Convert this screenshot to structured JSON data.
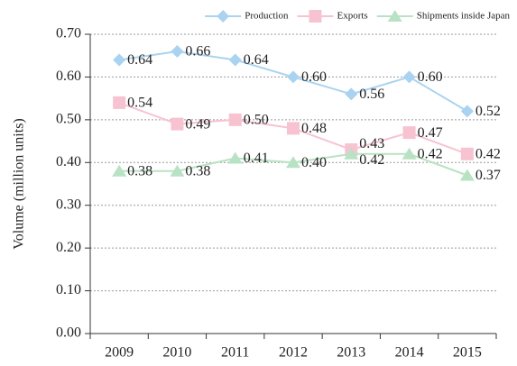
{
  "chart_data": {
    "type": "line",
    "y_label": "Volume (million units)",
    "categories": [
      "2009",
      "2010",
      "2011",
      "2012",
      "2013",
      "2014",
      "2015"
    ],
    "series": [
      {
        "name": "Production",
        "color": "#a9d3f0",
        "marker": "diamond",
        "values": [
          0.64,
          0.66,
          0.64,
          0.6,
          0.56,
          0.6,
          0.52
        ],
        "value_labels": [
          "0.64",
          "0.66",
          "0.64",
          "0.60",
          "0.56",
          "0.60",
          "0.52"
        ]
      },
      {
        "name": "Exports",
        "color": "#f7c3d1",
        "marker": "square",
        "values": [
          0.54,
          0.49,
          0.5,
          0.48,
          0.43,
          0.47,
          0.42
        ],
        "value_labels": [
          "0.54",
          "0.49",
          "0.50",
          "0.48",
          "0.43",
          "0.47",
          "0.42"
        ]
      },
      {
        "name": "Shipments inside Japan",
        "color": "#b9e2c4",
        "marker": "triangle",
        "values": [
          0.38,
          0.38,
          0.41,
          0.4,
          0.42,
          0.42,
          0.37
        ],
        "value_labels": [
          "0.38",
          "0.38",
          "0.41",
          "0.40",
          "0.42",
          "0.42",
          "0.37"
        ]
      }
    ],
    "ylim": [
      0,
      0.7
    ],
    "yticks": [
      {
        "value": 0,
        "label": "0.00"
      },
      {
        "value": 0.1,
        "label": "0.10"
      },
      {
        "value": 0.2,
        "label": "0.20"
      },
      {
        "value": 0.3,
        "label": "0.30"
      },
      {
        "value": 0.4,
        "label": "0.40"
      },
      {
        "value": 0.5,
        "label": "0.50"
      },
      {
        "value": 0.6,
        "label": "0.60"
      },
      {
        "value": 0.7,
        "label": "0.70"
      }
    ],
    "grid": true,
    "legend": "top-right"
  }
}
